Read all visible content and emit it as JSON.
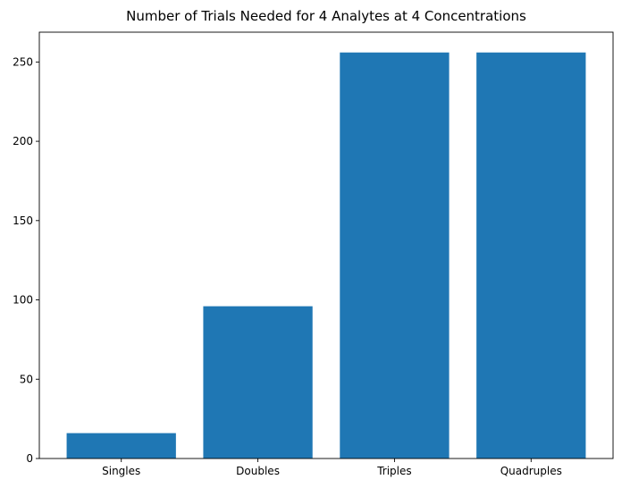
{
  "chart_data": {
    "type": "bar",
    "title": "Number of Trials Needed for 4 Analytes at 4 Concentrations",
    "xlabel": "",
    "ylabel": "",
    "categories": [
      "Singles",
      "Doubles",
      "Triples",
      "Quadruples"
    ],
    "values": [
      16,
      96,
      256,
      256
    ],
    "ylim": [
      0,
      268.8
    ],
    "yticks": [
      0,
      50,
      100,
      150,
      200,
      250
    ],
    "grid": false,
    "legend": "none",
    "bar_color": "#1f77b4"
  }
}
